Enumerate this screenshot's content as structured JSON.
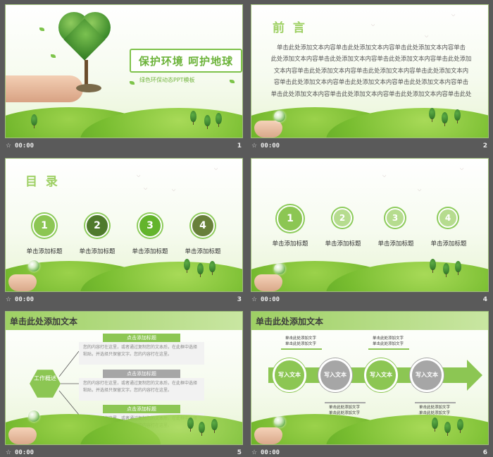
{
  "thumbnails": [
    {
      "time": "00:00",
      "number": "1"
    },
    {
      "time": "00:00",
      "number": "2"
    },
    {
      "time": "00:00",
      "number": "3"
    },
    {
      "time": "00:00",
      "number": "4"
    },
    {
      "time": "00:00",
      "number": "5"
    },
    {
      "time": "00:00",
      "number": "6"
    }
  ],
  "slide1": {
    "title": "保护环境  呵护地球",
    "subtitle": "绿色环保动态PPT模板"
  },
  "slide2": {
    "heading": "前  言",
    "lines": [
      "单击此处添加文本内容单击此处添加文本内容单击此处添加文本内容单击",
      "此处添加文本内容单击此处添加文本内容单击此处添加文本内容单击此处添加",
      "文本内容单击此处添加文本内容单击此处添加文本内容单击此处添加文本内",
      "容单击此处添加文本内容单击此处添加文本内容单击此处添加文本内容单击",
      "单击此处添加文本内容单击此处添加文本内容单击此处添加文本内容单击此处"
    ]
  },
  "slide3": {
    "heading": "目  录",
    "items": [
      {
        "num": "1",
        "label": "单击添加标题"
      },
      {
        "num": "2",
        "label": "单击添加标题"
      },
      {
        "num": "3",
        "label": "单击添加标题"
      },
      {
        "num": "4",
        "label": "单击添加标题"
      }
    ]
  },
  "slide4": {
    "items": [
      {
        "num": "1",
        "label": "单击添加标题"
      },
      {
        "num": "2",
        "label": "单击添加标题"
      },
      {
        "num": "3",
        "label": "单击添加标题"
      },
      {
        "num": "4",
        "label": "单击添加标题"
      }
    ]
  },
  "slide5": {
    "banner": "单击此处添加文本",
    "hex_label": "工作概述",
    "blocks": [
      {
        "head": "点击添加标题",
        "body": "您的内容打在这里，或者通过复制您的文本后，在此框中选择粘贴，并选择只保留文字。您的内容打在这里。"
      },
      {
        "head": "点击添加标题",
        "body": "您的内容打在这里，或者通过复制您的文本后，在此框中选择粘贴，并选择只保留文字。您的内容打在这里。"
      },
      {
        "head": "点击添加标题",
        "body": "您的内容打在这里，或者通过复制您的文本后，在此框中选择粘贴，并选择只保留文字。您的内容打在这里。"
      }
    ]
  },
  "slide6": {
    "banner": "单击此处添加文本",
    "balls": [
      "写入文本",
      "写入文本",
      "写入文本",
      "写入文本"
    ],
    "note": "单击此处添加文字"
  },
  "colors": {
    "accent": "#8cc653",
    "grey": "#a6a6a6",
    "background": "#5a5a5a"
  }
}
